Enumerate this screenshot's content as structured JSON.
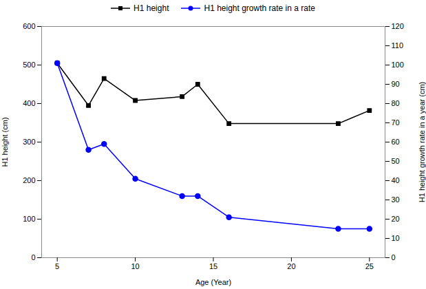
{
  "chart_data": {
    "type": "line",
    "xlabel": "Age (Year)",
    "ylabel": "H1 height (cm)",
    "y2label": "H1 height growth rate in a year (cm)",
    "x": [
      5,
      7,
      8,
      10,
      13,
      14,
      16,
      23,
      25
    ],
    "series": [
      {
        "name": "H1 height",
        "color": "black",
        "marker": "square",
        "values": [
          505,
          395,
          465,
          408,
          418,
          450,
          348,
          348,
          382
        ]
      },
      {
        "name": "H1 height growth rate in a rate",
        "color": "blue",
        "marker": "circle",
        "axis": "y2",
        "values": [
          101,
          56,
          59,
          41,
          32,
          32,
          21,
          15,
          15
        ]
      }
    ],
    "xlim": [
      4,
      26
    ],
    "xticks": [
      5,
      10,
      15,
      20,
      25
    ],
    "ylim": [
      0,
      600
    ],
    "yticks": [
      0,
      100,
      200,
      300,
      400,
      500,
      600
    ],
    "y2lim": [
      0,
      120
    ],
    "y2ticks": [
      0,
      10,
      20,
      30,
      40,
      50,
      60,
      70,
      80,
      90,
      100,
      110,
      120
    ],
    "grid": false,
    "legend": "top"
  }
}
